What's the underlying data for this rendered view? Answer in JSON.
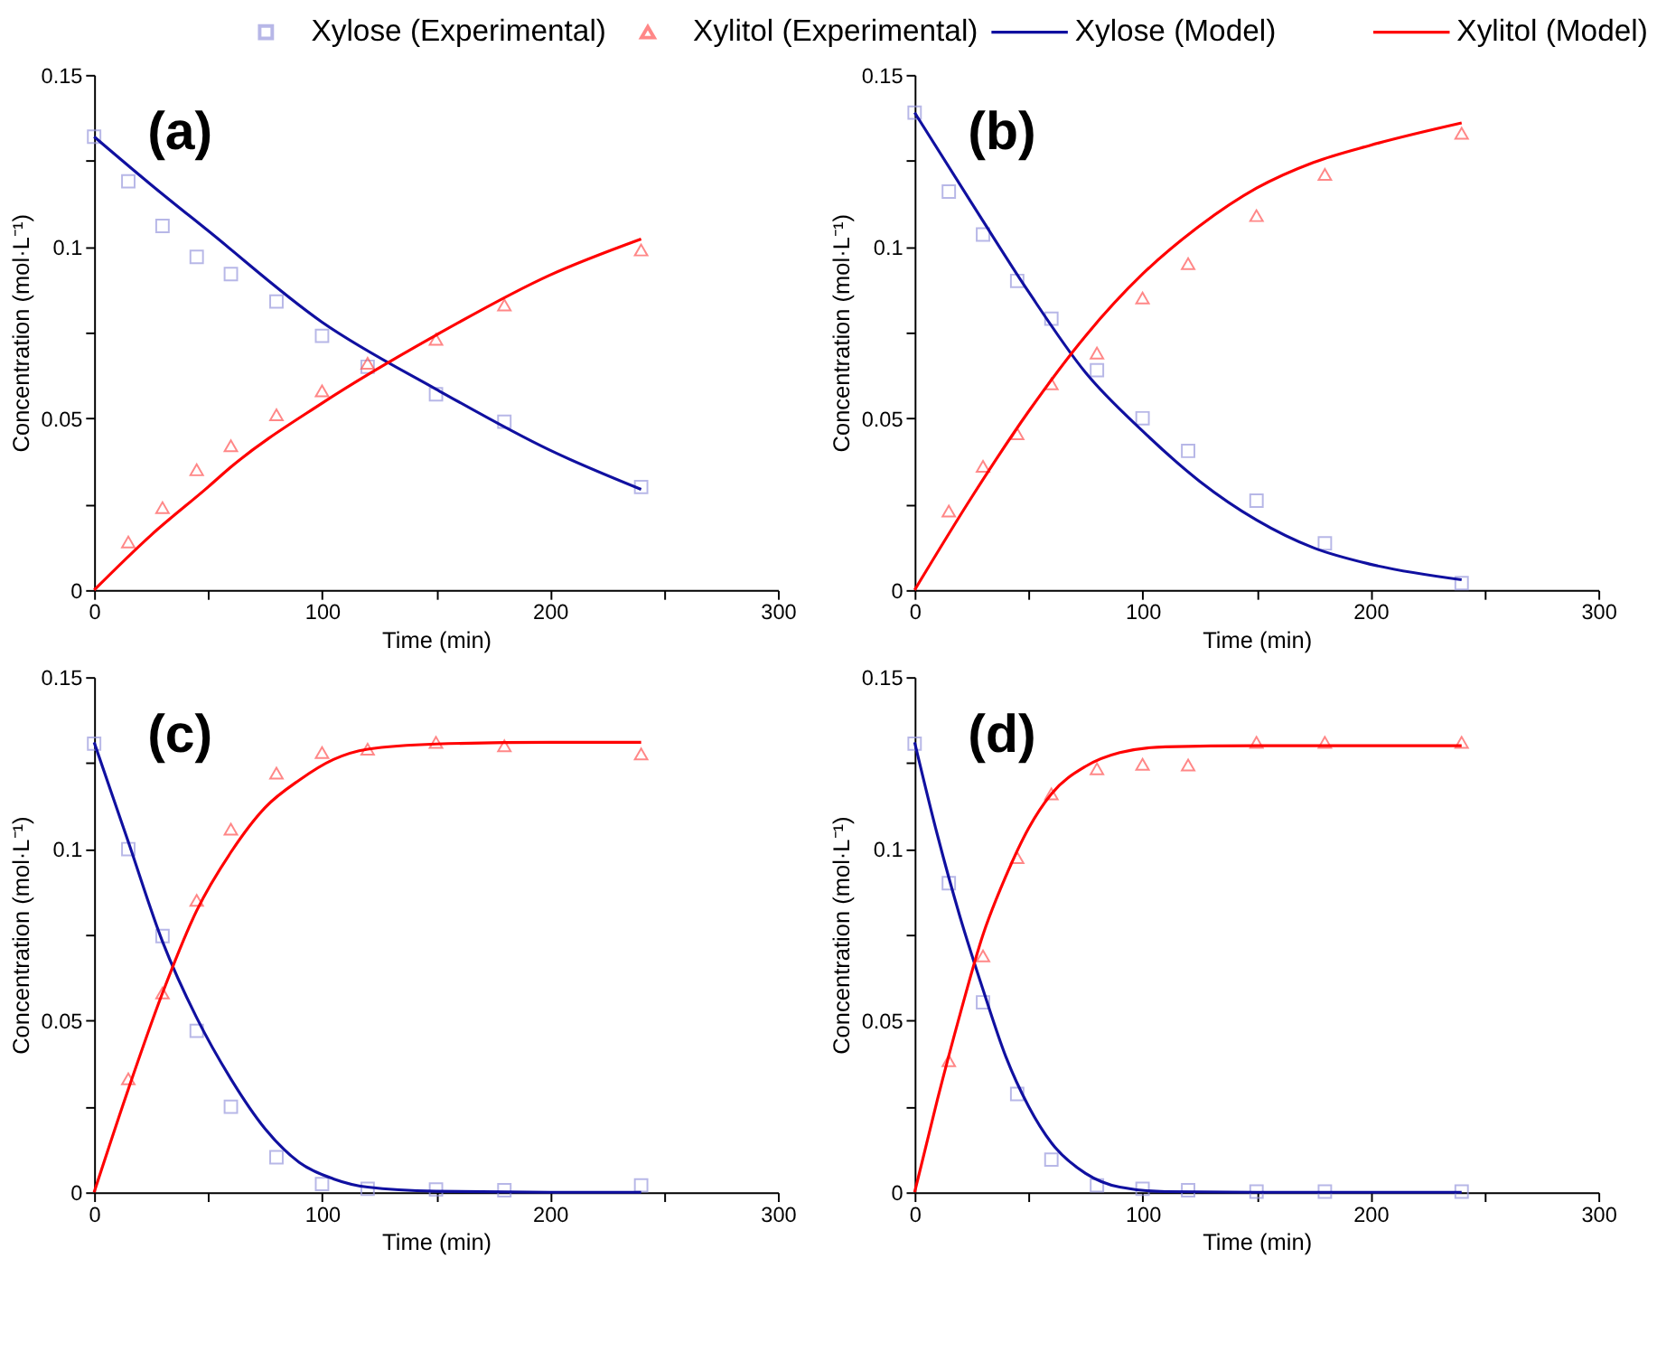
{
  "chart_data": [
    {
      "type": "line",
      "annotations": [
        "(a)"
      ],
      "xlabel": "Time (min)",
      "ylabel": "Concentration (mol·L⁻¹)",
      "legend": "top",
      "xlim": [
        0,
        300
      ],
      "ylim": [
        0,
        0.15
      ],
      "xticks": [
        0,
        {
          "value": 50,
          "label": null
        },
        100,
        {
          "value": 150,
          "label": null
        },
        200,
        {
          "value": 250,
          "label": null
        },
        300
      ],
      "yticks": [
        0,
        {
          "value": 0.025,
          "label": null
        },
        0.05,
        {
          "value": 0.075,
          "label": null
        },
        0.1,
        {
          "value": 0.125,
          "label": null
        },
        0.15
      ],
      "grid": false,
      "series": [
        {
          "name": "Xylose (Experimental)",
          "type": "scatter",
          "marker": "square",
          "color": "#9999dd",
          "x": [
            0,
            15,
            30,
            45,
            60,
            80,
            100,
            120,
            150,
            180,
            240
          ],
          "values": [
            0.132,
            0.119,
            0.106,
            0.097,
            0.092,
            0.084,
            0.074,
            0.065,
            0.057,
            0.049,
            0.03
          ]
        },
        {
          "name": "Xylitol (Experimental)",
          "type": "scatter",
          "marker": "triangle",
          "color": "#ff5555",
          "x": [
            15,
            30,
            45,
            60,
            80,
            100,
            120,
            150,
            180,
            240
          ],
          "values": [
            0.014,
            0.024,
            0.035,
            0.042,
            0.051,
            0.058,
            0.066,
            0.073,
            0.083,
            0.099
          ]
        },
        {
          "name": "Xylose (Model)",
          "color": "#1010a0",
          "x": [
            0,
            25,
            50,
            100,
            150,
            200,
            240
          ],
          "values": [
            0.132,
            0.118,
            0.1046,
            0.078,
            0.0585,
            0.0407,
            0.0293
          ]
        },
        {
          "name": "Xylitol (Model)",
          "color": "#ff0000",
          "x": [
            0,
            25,
            50,
            60,
            100,
            150,
            200,
            240
          ],
          "values": [
            0,
            0.016,
            0.03,
            0.0358,
            0.0544,
            0.0742,
            0.0917,
            0.1022
          ]
        }
      ]
    },
    {
      "type": "line",
      "annotations": [
        "(b)"
      ],
      "xlabel": "Time (min)",
      "ylabel": "Concentration (mol·L⁻¹)",
      "xlim": [
        0,
        300
      ],
      "ylim": [
        0,
        0.15
      ],
      "xticks": [
        0,
        {
          "value": 50,
          "label": null
        },
        100,
        {
          "value": 150,
          "label": null
        },
        200,
        {
          "value": 250,
          "label": null
        },
        300
      ],
      "yticks": [
        0,
        {
          "value": 0.025,
          "label": null
        },
        0.05,
        {
          "value": 0.075,
          "label": null
        },
        0.1,
        {
          "value": 0.125,
          "label": null
        },
        0.15
      ],
      "grid": false,
      "series": [
        {
          "type": "scatter",
          "marker": "square",
          "color": "#9999dd",
          "x": [
            0,
            15,
            30,
            45,
            60,
            80,
            100,
            120,
            150,
            180,
            240
          ],
          "values": [
            0.139,
            0.116,
            0.1035,
            0.09,
            0.079,
            0.064,
            0.05,
            0.0405,
            0.026,
            0.0136,
            0.002
          ]
        },
        {
          "type": "scatter",
          "marker": "triangle",
          "color": "#ff5555",
          "x": [
            15,
            30,
            45,
            60,
            80,
            100,
            120,
            150,
            180,
            240
          ],
          "values": [
            0.023,
            0.036,
            0.0455,
            0.06,
            0.069,
            0.085,
            0.095,
            0.109,
            0.121,
            0.133
          ]
        },
        {
          "color": "#1010a0",
          "x": [
            0,
            25,
            50,
            75,
            100,
            125,
            150,
            175,
            200,
            240
          ],
          "values": [
            0.139,
            0.1127,
            0.0868,
            0.0633,
            0.0463,
            0.0317,
            0.0204,
            0.0123,
            0.0075,
            0.003
          ]
        },
        {
          "color": "#ff0000",
          "x": [
            0,
            25,
            50,
            75,
            100,
            125,
            150,
            175,
            200,
            240
          ],
          "values": [
            0,
            0.027,
            0.052,
            0.074,
            0.092,
            0.106,
            0.117,
            0.1245,
            0.1295,
            0.136
          ]
        }
      ]
    },
    {
      "type": "line",
      "annotations": [
        "(c)"
      ],
      "xlabel": "Time (min)",
      "ylabel": "Concentration (mol·L⁻¹)",
      "xlim": [
        0,
        300
      ],
      "ylim": [
        0,
        0.15
      ],
      "xticks": [
        0,
        {
          "value": 50,
          "label": null
        },
        100,
        {
          "value": 150,
          "label": null
        },
        200,
        {
          "value": 250,
          "label": null
        },
        300
      ],
      "yticks": [
        0,
        {
          "value": 0.025,
          "label": null
        },
        0.05,
        {
          "value": 0.075,
          "label": null
        },
        0.1,
        {
          "value": 0.125,
          "label": null
        },
        0.15
      ],
      "grid": false,
      "series": [
        {
          "type": "scatter",
          "marker": "square",
          "color": "#9999dd",
          "x": [
            0,
            15,
            30,
            45,
            60,
            80,
            100,
            120,
            150,
            180,
            240
          ],
          "values": [
            0.1306,
            0.0999,
            0.0746,
            0.047,
            0.0249,
            0.0102,
            0.0024,
            0.001,
            0.0008,
            0.0006,
            0.002
          ]
        },
        {
          "type": "scatter",
          "marker": "triangle",
          "color": "#ff5555",
          "x": [
            15,
            30,
            45,
            60,
            80,
            100,
            120,
            150,
            180,
            240
          ],
          "values": [
            0.033,
            0.058,
            0.085,
            0.1057,
            0.122,
            0.128,
            0.129,
            0.131,
            0.13,
            0.1276
          ]
        },
        {
          "color": "#1010a0",
          "x": [
            0,
            15,
            30,
            45,
            60,
            75,
            90,
            105,
            120,
            150,
            200,
            240
          ],
          "values": [
            0.131,
            0.102,
            0.073,
            0.0508,
            0.033,
            0.0185,
            0.0087,
            0.0039,
            0.0015,
            0.0003,
            0,
            0
          ]
        },
        {
          "color": "#ff0000",
          "x": [
            0,
            15,
            30,
            45,
            60,
            75,
            90,
            105,
            120,
            150,
            200,
            240
          ],
          "values": [
            0,
            0.03,
            0.058,
            0.082,
            0.099,
            0.112,
            0.12,
            0.126,
            0.129,
            0.1305,
            0.131,
            0.131
          ]
        }
      ]
    },
    {
      "type": "line",
      "annotations": [
        "(d)"
      ],
      "xlabel": "Time (min)",
      "ylabel": "Concentration (mol·L⁻¹)",
      "xlim": [
        0,
        300
      ],
      "ylim": [
        0,
        0.15
      ],
      "xticks": [
        0,
        {
          "value": 50,
          "label": null
        },
        100,
        {
          "value": 150,
          "label": null
        },
        200,
        {
          "value": 250,
          "label": null
        },
        300
      ],
      "yticks": [
        0,
        {
          "value": 0.025,
          "label": null
        },
        0.05,
        {
          "value": 0.075,
          "label": null
        },
        0.1,
        {
          "value": 0.125,
          "label": null
        },
        0.15
      ],
      "grid": false,
      "series": [
        {
          "type": "scatter",
          "marker": "square",
          "color": "#9999dd",
          "x": [
            0,
            15,
            30,
            45,
            60,
            80,
            100,
            120,
            150,
            180,
            240
          ],
          "values": [
            0.1306,
            0.09,
            0.0553,
            0.0286,
            0.0095,
            0.002,
            0.001,
            0.0006,
            0.0002,
            0.0002,
            0.0002
          ]
        },
        {
          "type": "scatter",
          "marker": "triangle",
          "color": "#ff5555",
          "x": [
            15,
            30,
            45,
            60,
            80,
            100,
            120,
            150,
            180,
            240
          ],
          "values": [
            0.0383,
            0.0688,
            0.0974,
            0.116,
            0.1233,
            0.1246,
            0.1244,
            0.131,
            0.131,
            0.131
          ]
        },
        {
          "color": "#1010a0",
          "x": [
            0,
            10,
            20,
            30,
            40,
            50,
            60,
            75,
            90,
            110,
            150,
            240
          ],
          "values": [
            0.131,
            0.104,
            0.08,
            0.059,
            0.0395,
            0.025,
            0.0144,
            0.0055,
            0.0015,
            0.0002,
            0,
            0
          ]
        },
        {
          "color": "#ff0000",
          "x": [
            0,
            10,
            20,
            30,
            40,
            50,
            60,
            75,
            90,
            110,
            150,
            240
          ],
          "values": [
            0,
            0.027,
            0.052,
            0.075,
            0.092,
            0.106,
            0.116,
            0.124,
            0.128,
            0.1297,
            0.13,
            0.13
          ]
        }
      ]
    }
  ]
}
